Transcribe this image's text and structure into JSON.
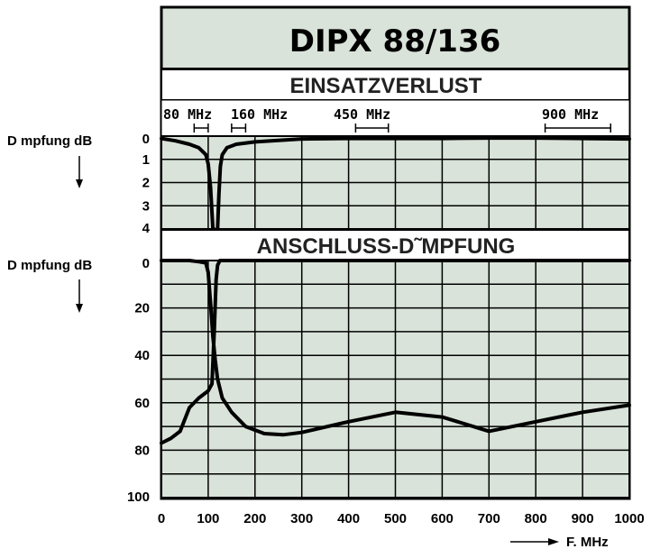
{
  "chart_data": {
    "type": "line",
    "title": "DIPX 88/136",
    "xlabel": "F. MHz",
    "xlim": [
      0,
      1000
    ],
    "x_ticks": [
      "0",
      "100",
      "200",
      "300",
      "400",
      "500",
      "600",
      "700",
      "800",
      "900",
      "1000"
    ],
    "freq_markers": [
      {
        "label": "80 MHz",
        "range": [
          70,
          100
        ]
      },
      {
        "label": "160 MHz",
        "range": [
          150,
          180
        ]
      },
      {
        "label": "450 MHz",
        "range": [
          415,
          485
        ]
      },
      {
        "label": "900 MHz",
        "range": [
          820,
          960
        ]
      }
    ],
    "panels": [
      {
        "subtitle": "EINSATZVERLUST",
        "ylabel": "D mpfung dB",
        "ylim": [
          0,
          4
        ],
        "y_ticks": [
          "0",
          "1",
          "2",
          "3",
          "4"
        ],
        "series": [
          {
            "x": [
              0,
              30,
              60,
              80,
              95,
              100,
              105,
              108,
              110,
              112
            ],
            "y": [
              0.1,
              0.2,
              0.35,
              0.5,
              0.8,
              1.2,
              2.2,
              3.3,
              4,
              4
            ]
          },
          {
            "x": [
              120,
              123,
              126,
              130,
              140,
              160,
              200,
              300,
              400,
              500,
              600,
              700,
              800,
              900,
              1000
            ],
            "y": [
              4,
              2.5,
              1.3,
              0.8,
              0.5,
              0.35,
              0.25,
              0.12,
              0.1,
              0.1,
              0.1,
              0.08,
              0.08,
              0.1,
              0.12
            ]
          }
        ]
      },
      {
        "subtitle": "ANSCHLUSS-D˜MPFUNG",
        "ylabel": "D mpfung dB",
        "ylim": [
          0,
          100
        ],
        "y_ticks": [
          "0",
          "20",
          "40",
          "60",
          "80",
          "100"
        ],
        "series": [
          {
            "x": [
              0,
              20,
              40,
              60,
              80,
              100,
              108,
              113,
              117,
              120,
              125,
              135,
              150,
              180,
              220,
              260,
              300,
              350,
              400,
              450,
              500,
              550,
              600,
              650,
              700,
              750,
              800,
              850,
              900,
              950,
              1000
            ],
            "y": [
              77,
              75,
              72,
              62,
              58,
              55,
              52,
              30,
              8,
              2,
              0,
              0,
              0,
              0,
              0,
              0,
              0,
              0,
              0,
              0,
              0,
              0,
              0,
              0,
              0,
              0,
              0,
              0,
              0,
              0,
              0
            ]
          },
          {
            "x": [
              0,
              20,
              40,
              60,
              80,
              95,
              100,
              105,
              110,
              115,
              120,
              130,
              150,
              180,
              220,
              260,
              300,
              400,
              500,
              600,
              700,
              800,
              900,
              1000
            ],
            "y": [
              0,
              0,
              0,
              0,
              0.5,
              1,
              5,
              18,
              32,
              42,
              50,
              58,
              64,
              70,
              73,
              73.5,
              72.5,
              68,
              64,
              66,
              72,
              68,
              64,
              61
            ]
          }
        ]
      }
    ],
    "colors": {
      "background": "#d9e3d9",
      "grid": "#000000",
      "line": "#000000",
      "title_bg": "#d9e3d9"
    }
  }
}
